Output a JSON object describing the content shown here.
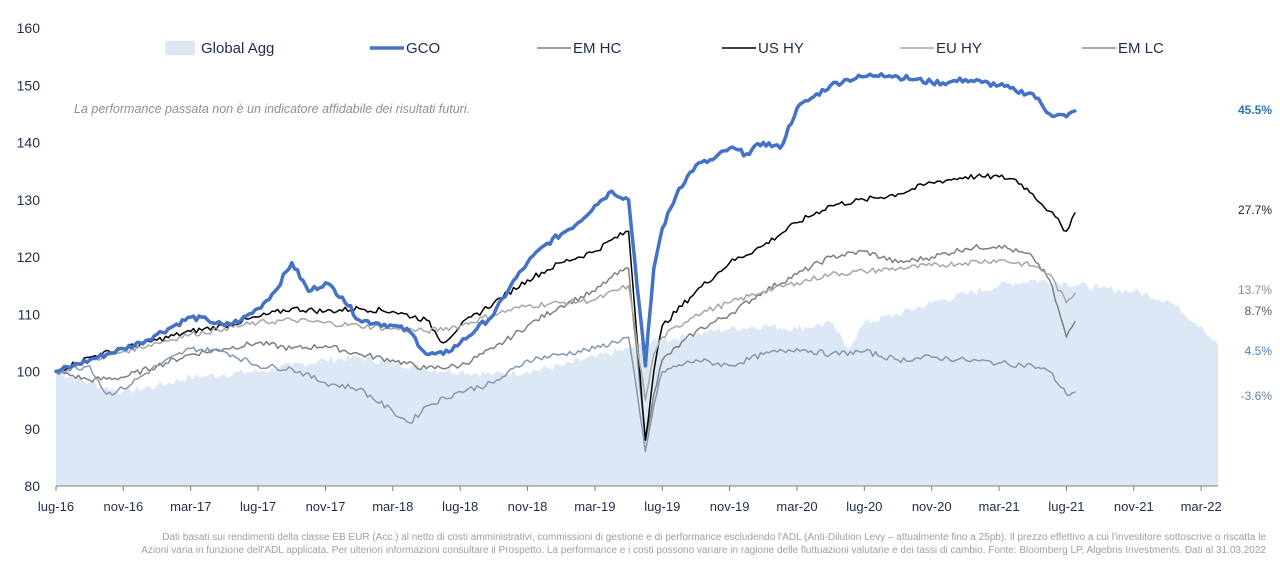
{
  "note": "La performance passata non è un indicatore affidabile dei risultati futuri.",
  "footer": {
    "line1": "Dati basati sui rendimenti della classe EB EUR (Acc.) al netto di costi amministrativi, commissioni di gestione e di performance escludendo l'ADL (Anti-Dilution Levy – attualmente fino a 25pb). Il prezzo effettivo a cui l'investitore sottoscrive o riscatta le",
    "line2": "Azioni varia in funzione dell'ADL applicata. Per ulteriori informazioni consultare il Prospetto. La performance e i costi possono variare in ragione delle fluttuazioni valutarie e dei tassi di cambio. Fonte: Bloomberg LP, Algebris Investments. Dati al 31.03.2022"
  },
  "chart_data": {
    "type": "line",
    "title": "",
    "xlabel": "",
    "ylabel": "",
    "ylim": [
      80,
      160
    ],
    "yticks": [
      "80",
      "90",
      "100",
      "110",
      "120",
      "130",
      "140",
      "150",
      "160"
    ],
    "xticks": [
      "lug-16",
      "nov-16",
      "mar-17",
      "lug-17",
      "nov-17",
      "mar-18",
      "lug-18",
      "nov-18",
      "mar-19",
      "lug-19",
      "nov-19",
      "mar-20",
      "lug-20",
      "nov-20",
      "mar-21",
      "lug-21",
      "nov-21",
      "mar-22"
    ],
    "x_range": [
      0,
      69
    ],
    "grid": false,
    "legend_position": "top",
    "series": [
      {
        "name": "Global Agg",
        "style": "area",
        "color": "#dce8f5",
        "end_label": "4.5%",
        "points": [
          [
            0,
            100
          ],
          [
            2,
            98
          ],
          [
            4,
            96.5
          ],
          [
            6,
            97.5
          ],
          [
            8,
            99
          ],
          [
            10,
            99.5
          ],
          [
            12,
            100
          ],
          [
            14,
            101
          ],
          [
            16,
            102
          ],
          [
            18,
            102.5
          ],
          [
            20,
            101.5
          ],
          [
            22,
            100.5
          ],
          [
            24,
            100
          ],
          [
            26,
            99.5
          ],
          [
            28,
            100
          ],
          [
            30,
            101
          ],
          [
            32,
            102.5
          ],
          [
            34,
            104
          ],
          [
            36,
            105.5
          ],
          [
            38,
            106.5
          ],
          [
            40,
            107.5
          ],
          [
            42,
            108
          ],
          [
            44,
            107.5
          ],
          [
            46,
            108.5
          ],
          [
            47,
            104
          ],
          [
            48,
            108.5
          ],
          [
            50,
            110
          ],
          [
            52,
            112
          ],
          [
            54,
            113.5
          ],
          [
            56,
            115
          ],
          [
            58,
            116
          ],
          [
            60,
            115.5
          ],
          [
            62,
            114.5
          ],
          [
            64,
            114
          ],
          [
            66,
            112.5
          ],
          [
            68,
            108
          ],
          [
            69,
            104.5
          ]
        ]
      },
      {
        "name": "GCO",
        "style": "line",
        "color": "#4472c4",
        "width": 3.5,
        "end_label": "45.5%",
        "end_label_color": "#2e75b6",
        "points": [
          [
            0,
            100
          ],
          [
            1,
            101
          ],
          [
            2,
            102
          ],
          [
            3,
            103
          ],
          [
            4,
            104
          ],
          [
            5,
            105
          ],
          [
            6,
            106.5
          ],
          [
            7,
            108
          ],
          [
            8,
            109.5
          ],
          [
            9,
            109
          ],
          [
            10,
            108
          ],
          [
            11,
            109
          ],
          [
            12,
            111
          ],
          [
            13,
            114
          ],
          [
            14,
            119
          ],
          [
            15,
            114
          ],
          [
            16,
            115.5
          ],
          [
            17,
            113
          ],
          [
            18,
            109
          ],
          [
            19,
            108.5
          ],
          [
            20,
            108
          ],
          [
            21,
            107
          ],
          [
            22,
            103
          ],
          [
            23,
            103
          ],
          [
            24,
            105
          ],
          [
            25,
            107.5
          ],
          [
            26,
            110
          ],
          [
            27,
            115
          ],
          [
            28,
            119
          ],
          [
            29,
            122
          ],
          [
            30,
            124
          ],
          [
            31,
            126
          ],
          [
            32,
            129
          ],
          [
            33,
            131.5
          ],
          [
            34,
            130
          ],
          [
            35,
            101
          ],
          [
            35.5,
            118
          ],
          [
            36,
            125
          ],
          [
            37,
            132
          ],
          [
            38,
            136
          ],
          [
            39,
            137
          ],
          [
            40,
            139
          ],
          [
            41,
            138
          ],
          [
            42,
            140
          ],
          [
            43,
            139
          ],
          [
            44,
            146
          ],
          [
            45,
            148
          ],
          [
            46,
            150
          ],
          [
            47,
            151
          ],
          [
            48,
            151.5
          ],
          [
            49,
            152
          ],
          [
            50,
            151.5
          ],
          [
            51,
            151
          ],
          [
            52,
            150.5
          ],
          [
            53,
            150.5
          ],
          [
            54,
            151
          ],
          [
            55,
            150.5
          ],
          [
            56,
            150
          ],
          [
            57,
            149
          ],
          [
            58,
            148.5
          ],
          [
            59,
            145
          ],
          [
            60,
            144.5
          ],
          [
            60.5,
            145.5
          ]
        ]
      },
      {
        "name": "EM HC",
        "style": "line",
        "color": "#7f7f7f",
        "width": 1.5,
        "end_label": "8.7%",
        "end_label_color": "#595959",
        "points": [
          [
            0,
            100
          ],
          [
            2,
            98.5
          ],
          [
            4,
            99
          ],
          [
            6,
            101
          ],
          [
            8,
            103
          ],
          [
            10,
            104
          ],
          [
            12,
            105
          ],
          [
            14,
            104
          ],
          [
            16,
            104.5
          ],
          [
            18,
            103
          ],
          [
            20,
            102
          ],
          [
            22,
            100.5
          ],
          [
            24,
            101
          ],
          [
            26,
            104
          ],
          [
            28,
            108
          ],
          [
            30,
            111.5
          ],
          [
            32,
            114
          ],
          [
            33,
            116.5
          ],
          [
            34,
            118
          ],
          [
            35,
            88
          ],
          [
            35.5,
            96
          ],
          [
            36,
            102
          ],
          [
            38,
            107
          ],
          [
            40,
            110
          ],
          [
            42,
            114
          ],
          [
            44,
            117
          ],
          [
            46,
            120
          ],
          [
            48,
            121
          ],
          [
            50,
            119
          ],
          [
            52,
            120
          ],
          [
            54,
            121.5
          ],
          [
            56,
            122
          ],
          [
            58,
            120
          ],
          [
            59,
            116
          ],
          [
            60,
            106
          ],
          [
            60.5,
            108.7
          ]
        ]
      },
      {
        "name": "US HY",
        "style": "line",
        "color": "#000000",
        "width": 1.5,
        "end_label": "27.7%",
        "end_label_color": "#1f1f1f",
        "points": [
          [
            0,
            100
          ],
          [
            2,
            102.5
          ],
          [
            4,
            104
          ],
          [
            6,
            105.5
          ],
          [
            8,
            107
          ],
          [
            10,
            108
          ],
          [
            12,
            109.5
          ],
          [
            14,
            111
          ],
          [
            16,
            110.5
          ],
          [
            18,
            111
          ],
          [
            20,
            110.5
          ],
          [
            22,
            109
          ],
          [
            23,
            105
          ],
          [
            24,
            108
          ],
          [
            26,
            112
          ],
          [
            28,
            116
          ],
          [
            30,
            119
          ],
          [
            32,
            121
          ],
          [
            33,
            123
          ],
          [
            34,
            124.5
          ],
          [
            35,
            88
          ],
          [
            35.5,
            100
          ],
          [
            36,
            108
          ],
          [
            38,
            114
          ],
          [
            40,
            119
          ],
          [
            42,
            122
          ],
          [
            44,
            126
          ],
          [
            46,
            129
          ],
          [
            48,
            130
          ],
          [
            50,
            131
          ],
          [
            52,
            133
          ],
          [
            54,
            134
          ],
          [
            55,
            134
          ],
          [
            56,
            134
          ],
          [
            57,
            133.5
          ],
          [
            58,
            131
          ],
          [
            59,
            128
          ],
          [
            60,
            124.5
          ],
          [
            60.5,
            127.7
          ]
        ]
      },
      {
        "name": "EU HY",
        "style": "line",
        "color": "#a6a6a6",
        "width": 1.5,
        "end_label": "13.7%",
        "end_label_color": "#8c8c8c",
        "points": [
          [
            0,
            100
          ],
          [
            2,
            102
          ],
          [
            4,
            103.5
          ],
          [
            6,
            105
          ],
          [
            8,
            106.5
          ],
          [
            10,
            107.5
          ],
          [
            12,
            108.5
          ],
          [
            14,
            109
          ],
          [
            16,
            108.5
          ],
          [
            18,
            108
          ],
          [
            20,
            107.5
          ],
          [
            22,
            107
          ],
          [
            24,
            108
          ],
          [
            26,
            110
          ],
          [
            28,
            111.5
          ],
          [
            30,
            112
          ],
          [
            32,
            112.5
          ],
          [
            34,
            115
          ],
          [
            35,
            95
          ],
          [
            35.5,
            103
          ],
          [
            36,
            106
          ],
          [
            38,
            110
          ],
          [
            40,
            112
          ],
          [
            42,
            114
          ],
          [
            44,
            115.5
          ],
          [
            46,
            117
          ],
          [
            48,
            117.5
          ],
          [
            50,
            118
          ],
          [
            52,
            118.5
          ],
          [
            54,
            119
          ],
          [
            56,
            119.5
          ],
          [
            58,
            118.5
          ],
          [
            59,
            117
          ],
          [
            60,
            112
          ],
          [
            60.5,
            113.7
          ]
        ]
      },
      {
        "name": "EM LC",
        "style": "line",
        "color": "#8497b0",
        "width": 1.5,
        "end_label": "-3.6%",
        "end_label_color": "#6d7f99",
        "points": [
          [
            0,
            100
          ],
          [
            2,
            101
          ],
          [
            3,
            96
          ],
          [
            4,
            97
          ],
          [
            6,
            101
          ],
          [
            8,
            104
          ],
          [
            10,
            103.5
          ],
          [
            12,
            101
          ],
          [
            14,
            100.5
          ],
          [
            16,
            98
          ],
          [
            18,
            97
          ],
          [
            20,
            93
          ],
          [
            21,
            91
          ],
          [
            22,
            94
          ],
          [
            24,
            96.5
          ],
          [
            26,
            98
          ],
          [
            28,
            102
          ],
          [
            30,
            103
          ],
          [
            32,
            104
          ],
          [
            34,
            106
          ],
          [
            35,
            86
          ],
          [
            35.5,
            94
          ],
          [
            36,
            100
          ],
          [
            38,
            102
          ],
          [
            40,
            101
          ],
          [
            42,
            103
          ],
          [
            44,
            104
          ],
          [
            46,
            103
          ],
          [
            48,
            103.5
          ],
          [
            50,
            102
          ],
          [
            52,
            102.5
          ],
          [
            54,
            102
          ],
          [
            56,
            101.5
          ],
          [
            58,
            101
          ],
          [
            59,
            100
          ],
          [
            60,
            96
          ],
          [
            60.5,
            96.4
          ]
        ]
      }
    ]
  }
}
